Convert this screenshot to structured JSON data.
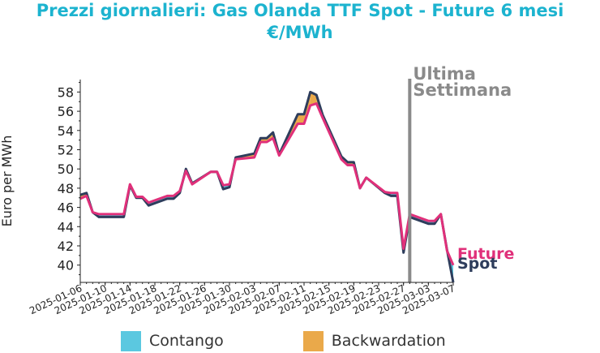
{
  "title_line1": "Prezzi giornalieri: Gas Olanda TTF Spot - Future 6 mesi",
  "title_line2": "€/MWh",
  "colors": {
    "title": "#1cb3cf",
    "spot": "#2e3d5c",
    "future": "#e0307a",
    "contango": "#5bc8e0",
    "backwardation": "#eaa94a",
    "vline": "#8a8a8a"
  },
  "chart_data": {
    "type": "line",
    "title": "Prezzi giornalieri: Gas Olanda TTF Spot - Future 6 mesi €/MWh",
    "xlabel": "",
    "ylabel": "Euro per MWh",
    "ylim": [
      38.2,
      59.3
    ],
    "yticks": [
      40,
      42,
      44,
      46,
      48,
      50,
      52,
      54,
      56,
      58
    ],
    "xticks": [
      "2025-01-06",
      "2025-01-10",
      "2025-01-14",
      "2025-01-18",
      "2025-01-22",
      "2025-01-26",
      "2025-01-30",
      "2025-02-03",
      "2025-02-07",
      "2025-02-11",
      "2025-02-15",
      "2025-02-19",
      "2025-02-23",
      "2025-02-27",
      "2025-03-03",
      "2025-03-07"
    ],
    "x": [
      "2025-01-06",
      "2025-01-07",
      "2025-01-08",
      "2025-01-09",
      "2025-01-10",
      "2025-01-13",
      "2025-01-14",
      "2025-01-15",
      "2025-01-16",
      "2025-01-17",
      "2025-01-20",
      "2025-01-21",
      "2025-01-22",
      "2025-01-23",
      "2025-01-24",
      "2025-01-27",
      "2025-01-28",
      "2025-01-29",
      "2025-01-30",
      "2025-01-31",
      "2025-02-03",
      "2025-02-04",
      "2025-02-05",
      "2025-02-06",
      "2025-02-07",
      "2025-02-10",
      "2025-02-11",
      "2025-02-12",
      "2025-02-13",
      "2025-02-14",
      "2025-02-17",
      "2025-02-18",
      "2025-02-19",
      "2025-02-20",
      "2025-02-21",
      "2025-02-24",
      "2025-02-25",
      "2025-02-26",
      "2025-02-27",
      "2025-02-28",
      "2025-03-03",
      "2025-03-04",
      "2025-03-05",
      "2025-03-06",
      "2025-03-07"
    ],
    "series": [
      {
        "name": "Spot",
        "values": [
          47.3,
          47.5,
          45.5,
          45.0,
          45.0,
          45.0,
          48.3,
          47.0,
          47.0,
          46.2,
          46.9,
          46.9,
          47.5,
          50.0,
          48.5,
          49.7,
          49.7,
          47.9,
          48.1,
          51.2,
          51.6,
          53.2,
          53.2,
          53.8,
          51.5,
          55.7,
          55.7,
          58.0,
          57.7,
          55.6,
          51.3,
          50.7,
          50.7,
          48.0,
          49.1,
          47.5,
          47.2,
          47.2,
          41.3,
          45.0,
          44.3,
          44.3,
          45.3,
          41.6,
          38.2
        ]
      },
      {
        "name": "Future",
        "values": [
          46.9,
          47.2,
          45.5,
          45.3,
          45.3,
          45.3,
          48.4,
          47.1,
          47.1,
          46.5,
          47.2,
          47.2,
          47.7,
          49.8,
          48.4,
          49.7,
          49.7,
          48.3,
          48.4,
          51.0,
          51.2,
          52.8,
          52.8,
          53.2,
          51.4,
          54.7,
          54.7,
          56.6,
          56.8,
          55.3,
          51.0,
          50.4,
          50.4,
          48.0,
          49.1,
          47.6,
          47.5,
          47.5,
          41.7,
          45.3,
          44.6,
          44.6,
          45.3,
          41.5,
          40.0
        ]
      }
    ],
    "vline": {
      "x": "2025-02-28",
      "label_line1": "Ultima",
      "label_line2": "Settimana"
    },
    "legend": [
      {
        "label": "Contango",
        "color": "#5bc8e0"
      },
      {
        "label": "Backwardation",
        "color": "#eaa94a"
      }
    ],
    "legend_position": "bottom",
    "end_labels": {
      "future": "Future",
      "spot": "Spot"
    },
    "grid": false
  }
}
